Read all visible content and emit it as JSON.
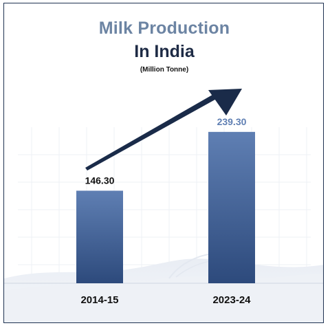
{
  "chart_data": {
    "type": "bar",
    "title": "Milk Production",
    "title_line2": "In India",
    "subtitle": "(Million Tonne)",
    "categories": [
      "2014-15",
      "2023-24"
    ],
    "values": [
      146.3,
      239.3
    ],
    "value_labels": [
      "146.30",
      "239.30"
    ],
    "ylim": [
      0,
      300
    ],
    "grid": true,
    "legend": "none",
    "trend_arrow": true
  },
  "colors": {
    "bar_top": "#5f7fb3",
    "bar_bottom": "#2d4a7c",
    "arrow": "#1a2b49",
    "title_light": "#6c84a3",
    "title_dark": "#1e2b45",
    "label_dark": "#111111",
    "label_light": "#5f7fb3"
  }
}
